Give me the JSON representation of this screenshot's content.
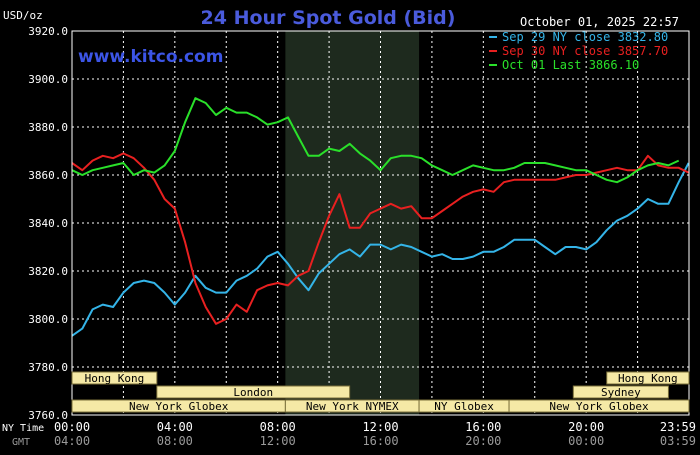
{
  "header": {
    "units": "USD/oz",
    "title": "24 Hour Spot Gold (Bid)",
    "timestamp": "October 01, 2025 22:57",
    "watermark": "www.kitco.com"
  },
  "colors": {
    "background": "#000000",
    "title": "#4a5bdc",
    "grid": "#ffffff",
    "axis_text": "#ffffff",
    "gmt_text": "#9a9a9a",
    "shade": "#1e2a1e",
    "session_bar": "#f5e9a6",
    "session_text": "#000000"
  },
  "chart_data": {
    "type": "line",
    "ylim": [
      3760,
      3920
    ],
    "xlim": [
      0,
      24
    ],
    "grid": true,
    "legend_position": "top-right",
    "y_ticks": [
      "3760.0",
      "3780.0",
      "3800.0",
      "3820.0",
      "3840.0",
      "3860.0",
      "3880.0",
      "3900.0",
      "3920.0"
    ],
    "y_tick_values": [
      3760,
      3780,
      3800,
      3820,
      3840,
      3860,
      3880,
      3900,
      3920
    ],
    "x_tick_hours": [
      0,
      4,
      8,
      12,
      16,
      20,
      23.983
    ],
    "x_row_labels": [
      "NY Time",
      "GMT"
    ],
    "x_ticks_ny": [
      "00:00",
      "04:00",
      "08:00",
      "12:00",
      "16:00",
      "20:00",
      "23:59"
    ],
    "x_ticks_gmt": [
      "04:00",
      "08:00",
      "12:00",
      "16:00",
      "20:00",
      "00:00",
      "03:59"
    ],
    "shaded_range": [
      8.3,
      13.5
    ],
    "series": [
      {
        "name": "Sep 29 NY close 3832.80",
        "color": "#34b4e8",
        "x": [
          0,
          0.4,
          0.8,
          1.2,
          1.6,
          2.0,
          2.4,
          2.8,
          3.2,
          3.6,
          4.0,
          4.4,
          4.8,
          5.2,
          5.6,
          6.0,
          6.4,
          6.8,
          7.2,
          7.6,
          8.0,
          8.4,
          8.8,
          9.2,
          9.6,
          10.0,
          10.4,
          10.8,
          11.2,
          11.6,
          12.0,
          12.4,
          12.8,
          13.2,
          13.6,
          14.0,
          14.4,
          14.8,
          15.2,
          15.6,
          16.0,
          16.4,
          16.8,
          17.2,
          17.6,
          18.0,
          18.4,
          18.8,
          19.2,
          19.6,
          20.0,
          20.4,
          20.8,
          21.2,
          21.6,
          22.0,
          22.4,
          22.8,
          23.2,
          23.6,
          23.983
        ],
        "values": [
          3793,
          3796,
          3804,
          3806,
          3805,
          3811,
          3815,
          3816,
          3815,
          3811,
          3806,
          3811,
          3818,
          3813,
          3811,
          3811,
          3816,
          3818,
          3821,
          3826,
          3828,
          3823,
          3817,
          3812,
          3819,
          3823,
          3827,
          3829,
          3826,
          3831,
          3831,
          3829,
          3831,
          3830,
          3828,
          3826,
          3827,
          3825,
          3825,
          3826,
          3828,
          3828,
          3830,
          3833,
          3833,
          3833,
          3830,
          3827,
          3830,
          3830,
          3829,
          3832,
          3837,
          3841,
          3843,
          3846,
          3850,
          3848,
          3848,
          3857,
          3865
        ]
      },
      {
        "name": "Sep 30 NY close 3857.70",
        "color": "#e82020",
        "x": [
          0,
          0.4,
          0.8,
          1.2,
          1.6,
          2.0,
          2.4,
          2.8,
          3.2,
          3.6,
          4.0,
          4.4,
          4.8,
          5.2,
          5.6,
          6.0,
          6.4,
          6.8,
          7.2,
          7.6,
          8.0,
          8.4,
          8.8,
          9.2,
          9.6,
          10.0,
          10.4,
          10.8,
          11.2,
          11.6,
          12.0,
          12.4,
          12.8,
          13.2,
          13.6,
          14.0,
          14.4,
          14.8,
          15.2,
          15.6,
          16.0,
          16.4,
          16.8,
          17.2,
          17.6,
          18.0,
          18.4,
          18.8,
          19.2,
          19.6,
          20.0,
          20.4,
          20.8,
          21.2,
          21.6,
          22.0,
          22.4,
          22.8,
          23.2,
          23.6,
          23.983
        ],
        "values": [
          3865,
          3862,
          3866,
          3868,
          3867,
          3869,
          3867,
          3863,
          3858,
          3850,
          3846,
          3832,
          3815,
          3805,
          3798,
          3800,
          3806,
          3803,
          3812,
          3814,
          3815,
          3814,
          3818,
          3820,
          3832,
          3843,
          3852,
          3838,
          3838,
          3844,
          3846,
          3848,
          3846,
          3847,
          3842,
          3842,
          3845,
          3848,
          3851,
          3853,
          3854,
          3853,
          3857,
          3858,
          3858,
          3858,
          3858,
          3858,
          3859,
          3860,
          3860,
          3861,
          3862,
          3863,
          3862,
          3862,
          3868,
          3864,
          3863,
          3863,
          3861
        ]
      },
      {
        "name": "Oct 01 Last 3866.10",
        "color": "#2ae02a",
        "x": [
          0,
          0.4,
          0.8,
          1.2,
          1.6,
          2.0,
          2.4,
          2.8,
          3.2,
          3.6,
          4.0,
          4.4,
          4.8,
          5.2,
          5.6,
          6.0,
          6.4,
          6.8,
          7.2,
          7.6,
          8.0,
          8.4,
          8.8,
          9.2,
          9.6,
          10.0,
          10.4,
          10.8,
          11.2,
          11.6,
          12.0,
          12.4,
          12.8,
          13.2,
          13.6,
          14.0,
          14.4,
          14.8,
          15.2,
          15.6,
          16.0,
          16.4,
          16.8,
          17.2,
          17.6,
          18.0,
          18.4,
          18.8,
          19.2,
          19.6,
          20.0,
          20.4,
          20.8,
          21.2,
          21.6,
          22.0,
          22.4,
          22.8,
          23.2,
          23.6
        ],
        "values": [
          3862,
          3860,
          3862,
          3863,
          3864,
          3865,
          3860,
          3862,
          3861,
          3864,
          3870,
          3882,
          3892,
          3890,
          3885,
          3888,
          3886,
          3886,
          3884,
          3881,
          3882,
          3884,
          3876,
          3868,
          3868,
          3871,
          3870,
          3873,
          3869,
          3866,
          3862,
          3867,
          3868,
          3868,
          3867,
          3864,
          3862,
          3860,
          3862,
          3864,
          3863,
          3862,
          3862,
          3863,
          3865,
          3865,
          3865,
          3864,
          3863,
          3862,
          3862,
          3860,
          3858,
          3857,
          3859,
          3862,
          3864,
          3865,
          3864,
          3866
        ]
      }
    ],
    "sessions": [
      {
        "label": "Hong Kong",
        "start": 0.0,
        "end": 3.3,
        "row": 0
      },
      {
        "label": "Hong Kong",
        "start": 20.8,
        "end": 24.0,
        "row": 0
      },
      {
        "label": "London",
        "start": 3.3,
        "end": 10.8,
        "row": 1
      },
      {
        "label": "Sydney",
        "start": 19.5,
        "end": 23.2,
        "row": 1
      },
      {
        "label": "New York Globex",
        "start": 0.0,
        "end": 8.3,
        "row": 2
      },
      {
        "label": "New York NYMEX",
        "start": 8.3,
        "end": 13.5,
        "row": 2
      },
      {
        "label": "NY Globex",
        "start": 13.5,
        "end": 17.0,
        "row": 2
      },
      {
        "label": "New York Globex",
        "start": 17.0,
        "end": 24.0,
        "row": 2
      }
    ]
  }
}
